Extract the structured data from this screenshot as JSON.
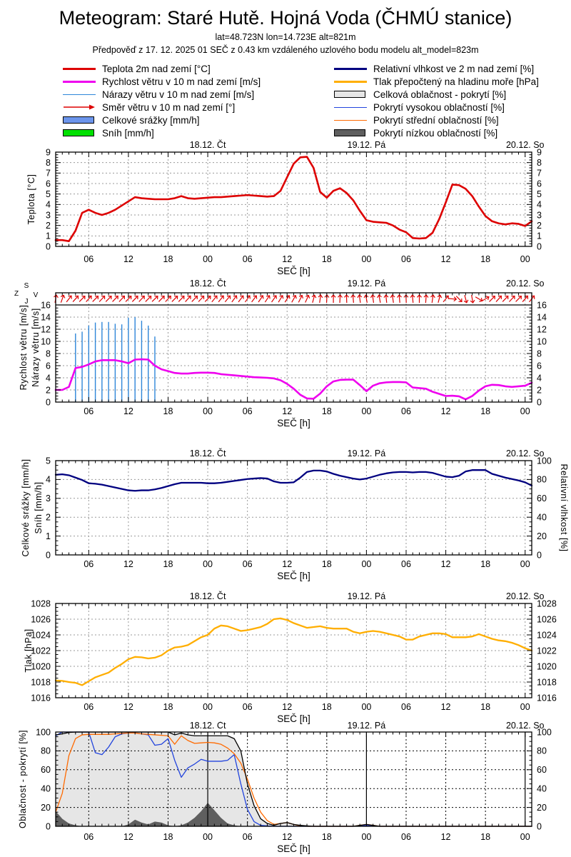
{
  "header": {
    "title": "Meteogram: Staré Hutě. Hojná Voda (ČHMÚ stanice)",
    "subtitle1": "lat=48.723N lon=14.723E alt=821m",
    "subtitle2": "Předpověď z 17. 12. 2025 01 SEČ z 0.43 km vzdáleného uzlového bodu modelu alt_model=823m"
  },
  "legend": {
    "left": [
      {
        "type": "line",
        "w": 3,
        "color": "#dd0000",
        "label": "Teplota 2m nad zemí [°C]"
      },
      {
        "type": "line",
        "w": 3,
        "color": "#ee00ee",
        "label": "Rychlost větru v 10 m nad zemí [m/s]"
      },
      {
        "type": "line",
        "w": 1.5,
        "color": "#2E86D9",
        "label": "Nárazy větru v 10 m nad zemí [m/s]"
      },
      {
        "type": "arrow",
        "color": "#dd0000",
        "label": "Směr větru v 10 m nad zemí [°]"
      },
      {
        "type": "box",
        "color": "#6C95EC",
        "label": "Celkové srážky [mm/h]"
      },
      {
        "type": "box",
        "color": "#00E000",
        "label": "Sníh [mm/h]"
      }
    ],
    "right": [
      {
        "type": "line",
        "w": 3,
        "color": "#000080",
        "label": "Relativní vlhkost ve 2 m nad zemí [%]"
      },
      {
        "type": "line",
        "w": 3,
        "color": "#FFAE00",
        "label": "Tlak přepočtený na hladinu moře [hPa]"
      },
      {
        "type": "box",
        "color": "#E6E6E6",
        "label": "Celková oblačnost - pokrytí [%]"
      },
      {
        "type": "line",
        "w": 1.5,
        "color": "#2244dd",
        "label": "Pokrytí vysokou oblačností [%]"
      },
      {
        "type": "line",
        "w": 1.5,
        "color": "#FF6A00",
        "label": "Pokrytí střední oblačností [%]"
      },
      {
        "type": "box",
        "color": "#5f5f5f",
        "label": "Pokrytí nízkou oblačností [%]"
      }
    ]
  },
  "chart_data": {
    "type": "meteogram-multi-panel-line",
    "x": {
      "label": "SEČ [h]",
      "hours_start": 1,
      "hours_end": 73,
      "tick_every_h": 6,
      "tick_labels_cycle": [
        "06",
        "12",
        "18",
        "00"
      ]
    },
    "day_labels": [
      {
        "hour": 24,
        "text": "18.12. Čt"
      },
      {
        "hour": 48,
        "text": "19.12. Pá"
      },
      {
        "hour": 72,
        "text": "20.12. So"
      }
    ],
    "panels": [
      {
        "id": "temperature",
        "ylabels": [
          "Teplota [°C]"
        ],
        "ylim": [
          0,
          9
        ],
        "ytick": 1,
        "yminor": 0.25,
        "series": [
          {
            "kind": "line",
            "name": "Teplota 2m nad zemí [°C]",
            "color": "#dd0000",
            "width": 2.6,
            "values": [
              0.6,
              0.6,
              0.5,
              1.5,
              3.2,
              3.5,
              3.2,
              3.0,
              3.2,
              3.5,
              3.9,
              4.3,
              4.7,
              4.6,
              4.55,
              4.5,
              4.5,
              4.5,
              4.6,
              4.8,
              4.6,
              4.55,
              4.6,
              4.65,
              4.7,
              4.7,
              4.75,
              4.8,
              4.85,
              4.9,
              4.85,
              4.8,
              4.75,
              4.8,
              5.3,
              6.6,
              7.9,
              8.5,
              8.55,
              7.5,
              5.2,
              4.65,
              5.3,
              5.55,
              5.1,
              4.4,
              3.4,
              2.5,
              2.35,
              2.3,
              2.25,
              2.0,
              1.6,
              1.35,
              0.8,
              0.75,
              0.8,
              1.3,
              2.6,
              4.2,
              5.9,
              5.85,
              5.5,
              4.8,
              3.8,
              2.9,
              2.4,
              2.2,
              2.1,
              2.2,
              2.15,
              1.95,
              2.4
            ]
          }
        ]
      },
      {
        "id": "wind",
        "ylabels": [
          "Rychlost větru [m/s]",
          "Nárazy větru [m/s]"
        ],
        "ylim": [
          0,
          16
        ],
        "ytick": 2,
        "yminor": 0.5,
        "compass": {
          "top": "S",
          "left": "Z",
          "right": "V",
          "bottom": "J"
        },
        "series": [
          {
            "kind": "bars",
            "name": "Nárazy větru v 10 m nad zemí [m/s]",
            "color": "#2E86D9",
            "width": 1.4,
            "start": 4,
            "values": [
              11.3,
              11.6,
              12.6,
              13.1,
              13.2,
              13.2,
              12.9,
              12.8,
              13.9,
              14.0,
              13.4,
              12.6,
              10.8
            ]
          },
          {
            "kind": "line",
            "name": "Rychlost větru v 10 m nad zemí [m/s]",
            "color": "#ee00ee",
            "width": 2.6,
            "values": [
              2.0,
              2.0,
              2.5,
              5.6,
              5.8,
              6.2,
              6.7,
              6.9,
              6.9,
              6.9,
              6.7,
              6.4,
              7.0,
              7.05,
              7.0,
              6.0,
              5.4,
              5.1,
              4.8,
              4.7,
              4.7,
              4.8,
              4.85,
              4.85,
              4.8,
              4.6,
              4.5,
              4.4,
              4.3,
              4.2,
              4.1,
              4.05,
              4.0,
              3.9,
              3.6,
              3.0,
              2.2,
              1.2,
              0.6,
              0.55,
              1.4,
              2.6,
              3.4,
              3.65,
              3.7,
              3.7,
              2.8,
              1.8,
              2.7,
              3.1,
              3.25,
              3.3,
              3.3,
              3.25,
              2.4,
              2.3,
              2.2,
              1.7,
              1.35,
              1.0,
              1.05,
              0.95,
              0.45,
              1.0,
              1.9,
              2.6,
              2.85,
              2.8,
              2.6,
              2.5,
              2.6,
              2.7,
              3.2
            ]
          },
          {
            "kind": "arrows",
            "name": "Směr větru v 10 m nad zemí [°]",
            "color": "#dd0000",
            "values": [
              10,
              20,
              38,
              42,
              45,
              42,
              45,
              43,
              45,
              44,
              43,
              45,
              44,
              43,
              45,
              46,
              44,
              43,
              45,
              44,
              42,
              44,
              43,
              44,
              40,
              39,
              40,
              37,
              38,
              36,
              37,
              35,
              34,
              35,
              32,
              33,
              30,
              27,
              25,
              15,
              8,
              3,
              0,
              3,
              -2,
              -5,
              -8,
              -10,
              -8,
              -10,
              -6,
              -8,
              -5,
              -2,
              -5,
              0,
              4,
              8,
              15,
              40,
              95,
              135,
              165,
              170,
              120,
              60,
              45,
              42,
              44,
              43,
              45,
              42,
              40
            ]
          }
        ]
      },
      {
        "id": "precip_humidity",
        "ylabels": [
          "Celkové srážky [mm/h]",
          "Sníh [mm/h]"
        ],
        "ylim": [
          0,
          5
        ],
        "ytick": 1,
        "yminor": 0.25,
        "y2label": "Relativní vlhkost [%]",
        "y2lim": [
          0,
          100
        ],
        "y2tick": 20,
        "series": [
          {
            "kind": "line",
            "name": "Relativní vlhkost ve 2 m nad zemí [%]",
            "color": "#000080",
            "width": 2.3,
            "axis": "y2",
            "values": [
              85,
              85.5,
              84.5,
              82,
              79.5,
              76,
              75.5,
              74.5,
              73,
              71.5,
              70,
              68.5,
              68,
              68.5,
              68.5,
              69.5,
              71,
              73,
              75,
              76.5,
              76.5,
              76.5,
              76.5,
              76,
              76,
              76.5,
              77.5,
              78.5,
              79.5,
              80.5,
              81,
              81.5,
              81,
              78,
              76.5,
              76.5,
              77,
              82,
              88,
              89.5,
              89.5,
              88.5,
              86,
              84,
              82.5,
              81,
              80,
              81,
              83,
              85,
              86.5,
              87.5,
              88,
              88,
              87.5,
              88,
              88,
              87,
              85,
              83,
              82.5,
              84,
              88.5,
              90,
              90,
              90,
              86,
              84,
              82,
              80.5,
              79,
              77,
              73.5
            ]
          }
        ]
      },
      {
        "id": "pressure",
        "ylabels": [
          "Tlak [hPa]"
        ],
        "ylim": [
          1016,
          1028
        ],
        "ytick": 2,
        "yminor": 0.5,
        "series": [
          {
            "kind": "line",
            "name": "Tlak přepočtený na hladinu moře [hPa]",
            "color": "#FFAE00",
            "width": 2.3,
            "values": [
              1018.2,
              1018.15,
              1018.0,
              1017.9,
              1017.6,
              1018.1,
              1018.6,
              1018.9,
              1019.2,
              1019.8,
              1020.3,
              1020.9,
              1021.2,
              1021.15,
              1021.0,
              1021.1,
              1021.4,
              1022.0,
              1022.4,
              1022.5,
              1022.7,
              1023.2,
              1023.7,
              1024.0,
              1024.8,
              1025.2,
              1025.1,
              1024.8,
              1024.5,
              1024.6,
              1024.8,
              1025.0,
              1025.4,
              1026.0,
              1026.1,
              1025.9,
              1025.5,
              1025.2,
              1024.9,
              1025.0,
              1025.1,
              1024.9,
              1024.8,
              1024.8,
              1024.8,
              1024.4,
              1024.2,
              1024.4,
              1024.5,
              1024.4,
              1024.2,
              1024.0,
              1023.8,
              1023.4,
              1023.4,
              1023.8,
              1024.0,
              1024.2,
              1024.2,
              1024.1,
              1023.7,
              1023.7,
              1023.7,
              1023.8,
              1024.1,
              1023.8,
              1023.5,
              1023.3,
              1023.2,
              1023.0,
              1022.7,
              1022.3,
              1022.0
            ]
          }
        ]
      },
      {
        "id": "cloud",
        "ylabels": [
          "Oblačnost - pokrytí [%]"
        ],
        "ylim": [
          0,
          100
        ],
        "ytick": 20,
        "yminor": 5,
        "black_grid": true,
        "series": [
          {
            "kind": "area",
            "name": "Celková oblačnost - pokrytí [%]",
            "color": "#E6E6E6",
            "values": [
              97,
              98,
              99.5,
              100,
              100,
              100,
              100,
              100,
              100,
              100,
              100,
              100,
              100,
              100,
              100,
              100,
              100,
              100,
              97,
              99,
              97,
              96,
              96,
              96,
              96,
              96,
              96,
              93,
              80,
              45,
              22,
              8,
              3,
              1,
              3,
              4,
              2,
              1,
              0.5,
              0,
              0,
              0,
              0,
              0,
              0,
              0,
              1,
              2,
              1,
              0,
              0,
              0,
              0,
              0,
              0,
              0,
              0,
              0,
              0,
              0,
              0,
              0,
              0,
              0,
              0,
              0,
              0,
              0,
              0,
              0,
              0,
              0,
              0
            ]
          },
          {
            "kind": "area",
            "name": "Pokrytí nízkou oblačností [%]",
            "color": "#5f5f5f",
            "values": [
              16,
              8,
              3,
              1,
              0,
              0,
              0,
              0,
              0,
              0,
              0,
              2,
              7,
              4,
              2,
              5,
              4,
              1,
              0,
              1,
              4,
              9,
              16,
              25,
              17,
              9,
              3,
              1,
              0,
              0,
              0,
              0,
              0,
              0,
              0,
              0,
              0,
              0,
              0,
              0,
              0,
              0,
              0,
              0,
              0,
              0,
              0,
              0,
              0,
              0,
              0,
              0,
              0,
              0,
              0,
              0,
              0,
              0,
              0,
              0,
              0,
              0,
              0,
              0,
              0,
              0,
              0,
              0,
              0,
              0,
              0,
              0,
              0
            ]
          },
          {
            "kind": "line",
            "name": "Pokrytí vysokou oblačností [%]",
            "color": "#2244dd",
            "width": 1.3,
            "values": [
              96,
              100,
              100,
              100,
              100,
              100,
              78,
              76,
              84,
              95,
              98,
              99,
              99,
              98,
              97,
              86,
              87,
              93,
              70,
              52,
              62,
              66,
              71,
              69,
              69,
              69,
              70,
              76,
              45,
              18,
              5,
              1,
              0.5,
              0,
              0,
              0,
              0,
              0,
              0,
              0,
              0,
              0,
              0,
              0,
              0,
              0,
              0.5,
              1,
              0.5,
              0,
              0,
              0,
              0,
              0,
              0,
              0,
              0,
              0,
              0,
              0,
              0,
              0,
              0,
              0,
              0,
              0,
              0,
              0,
              0,
              0,
              0,
              0,
              0
            ]
          },
          {
            "kind": "line",
            "name": "Pokrytí střední oblačností [%]",
            "color": "#FF6A00",
            "width": 1.3,
            "values": [
              15,
              35,
              75,
              93,
              97,
              97.5,
              97.5,
              97.5,
              97.5,
              98,
              98.5,
              99,
              99,
              98,
              97.5,
              97,
              96.5,
              96,
              87,
              96,
              91,
              88,
              88.5,
              89,
              88.5,
              87,
              83,
              77,
              67,
              50,
              30,
              15,
              6,
              2,
              3,
              4,
              2,
              0.5,
              0,
              0,
              0,
              0,
              0,
              0,
              0,
              0,
              1,
              2,
              1,
              0,
              0,
              0,
              0,
              0,
              0,
              0,
              0,
              0,
              0,
              0,
              0,
              0,
              0,
              0,
              0,
              0,
              0,
              0,
              0,
              0,
              0,
              0,
              0
            ]
          },
          {
            "kind": "line",
            "name": "Celková oblačnost - obrys",
            "color": "#000000",
            "width": 1.3,
            "values": [
              97,
              98,
              99.5,
              100,
              100,
              100,
              100,
              100,
              100,
              100,
              100,
              100,
              100,
              100,
              100,
              100,
              100,
              100,
              97,
              99,
              97,
              96,
              96,
              96,
              96,
              96,
              96,
              93,
              80,
              45,
              22,
              8,
              3,
              1,
              3,
              4,
              2,
              1,
              0.5,
              0,
              0,
              0,
              0,
              0,
              0,
              0,
              1,
              2,
              1,
              0,
              0,
              0,
              0,
              0,
              0,
              0,
              0,
              0,
              0,
              0,
              0,
              0,
              0,
              0,
              0,
              0,
              0,
              0,
              0,
              0,
              0,
              0,
              0
            ]
          }
        ]
      }
    ]
  }
}
